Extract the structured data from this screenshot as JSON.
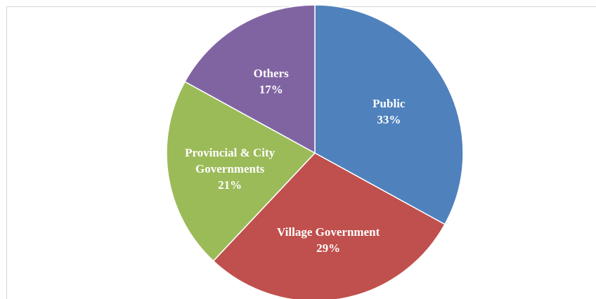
{
  "chart_data": {
    "type": "pie",
    "categories": [
      "Public",
      "Village Government",
      "Provincial & City Governments",
      "Others"
    ],
    "values": [
      33,
      29,
      21,
      17
    ],
    "value_labels": [
      "33%",
      "29%",
      "21%",
      "17%"
    ],
    "colors": [
      "#4f81bd",
      "#c0504d",
      "#9bbb59",
      "#8064a2"
    ]
  }
}
